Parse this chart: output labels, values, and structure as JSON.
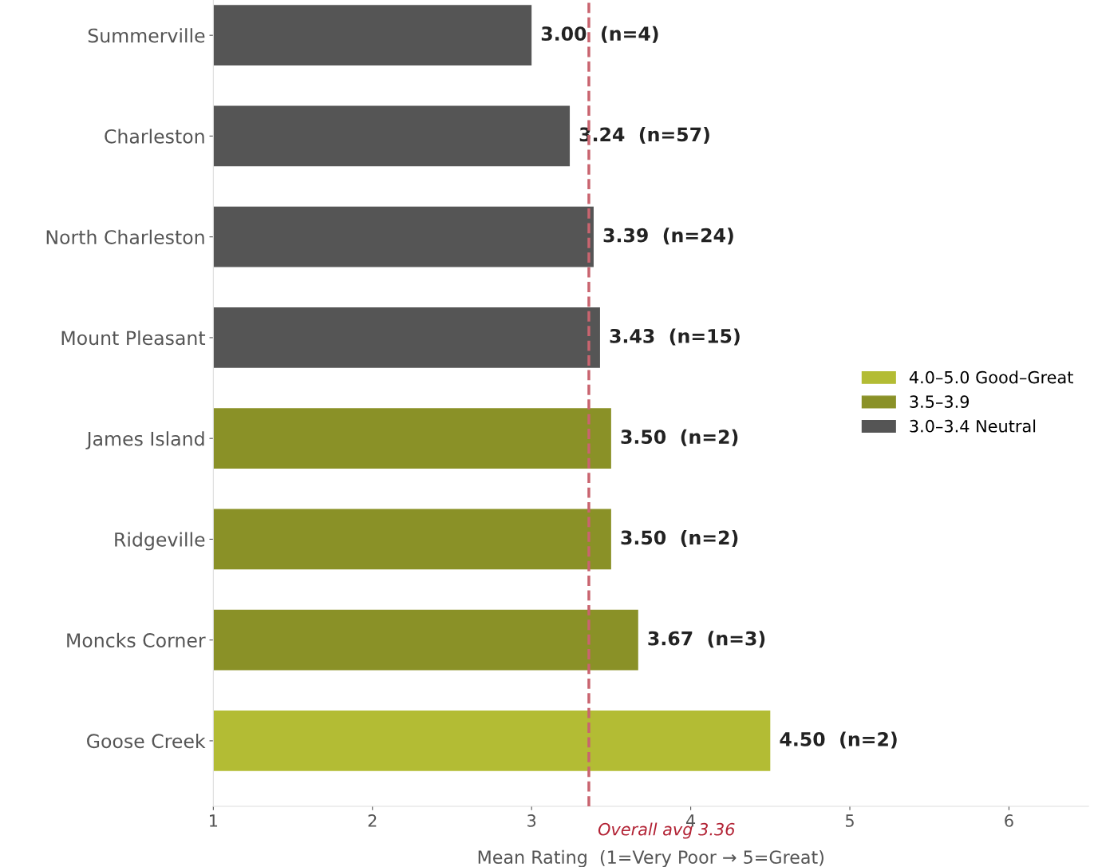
{
  "chart_data": {
    "type": "bar",
    "orientation": "horizontal",
    "categories": [
      "Summerville",
      "Charleston",
      "North Charleston",
      "Mount Pleasant",
      "James Island",
      "Ridgeville",
      "Moncks Corner",
      "Goose Creek"
    ],
    "series": [
      {
        "name": "4.0–5.0 Good–Great",
        "color": "#b3bc34",
        "values": [
          null,
          null,
          null,
          null,
          null,
          null,
          null,
          4.5
        ],
        "value_labels": [
          null,
          null,
          null,
          null,
          null,
          null,
          null,
          "4.50  (n=2)"
        ]
      },
      {
        "name": "3.5–3.9",
        "color": "#8a9127",
        "values": [
          null,
          null,
          null,
          null,
          3.5,
          3.5,
          3.67,
          null
        ],
        "value_labels": [
          null,
          null,
          null,
          null,
          "3.50  (n=2)",
          "3.50  (n=2)",
          "3.67  (n=3)",
          null
        ]
      },
      {
        "name": "3.0–3.4 Neutral",
        "color": "#555555",
        "values": [
          3.0,
          3.24,
          3.39,
          3.43,
          null,
          null,
          null,
          null
        ],
        "value_labels": [
          "3.00  (n=4)",
          "3.24  (n=57)",
          "3.39  (n=24)",
          "3.43  (n=15)",
          null,
          null,
          null,
          null
        ]
      }
    ],
    "xlabel": "Mean Rating  (1=Very Poor → 5=Great)",
    "xlim": [
      1,
      6.5
    ],
    "xticks": [
      1,
      2,
      3,
      4,
      5,
      6
    ],
    "ref_lines": [
      {
        "axis": "x",
        "value": 3.36,
        "label": "Overall avg 3.36",
        "color": "#c9646f",
        "line_style": "dashed"
      }
    ],
    "grid": false,
    "legend": "center right"
  }
}
